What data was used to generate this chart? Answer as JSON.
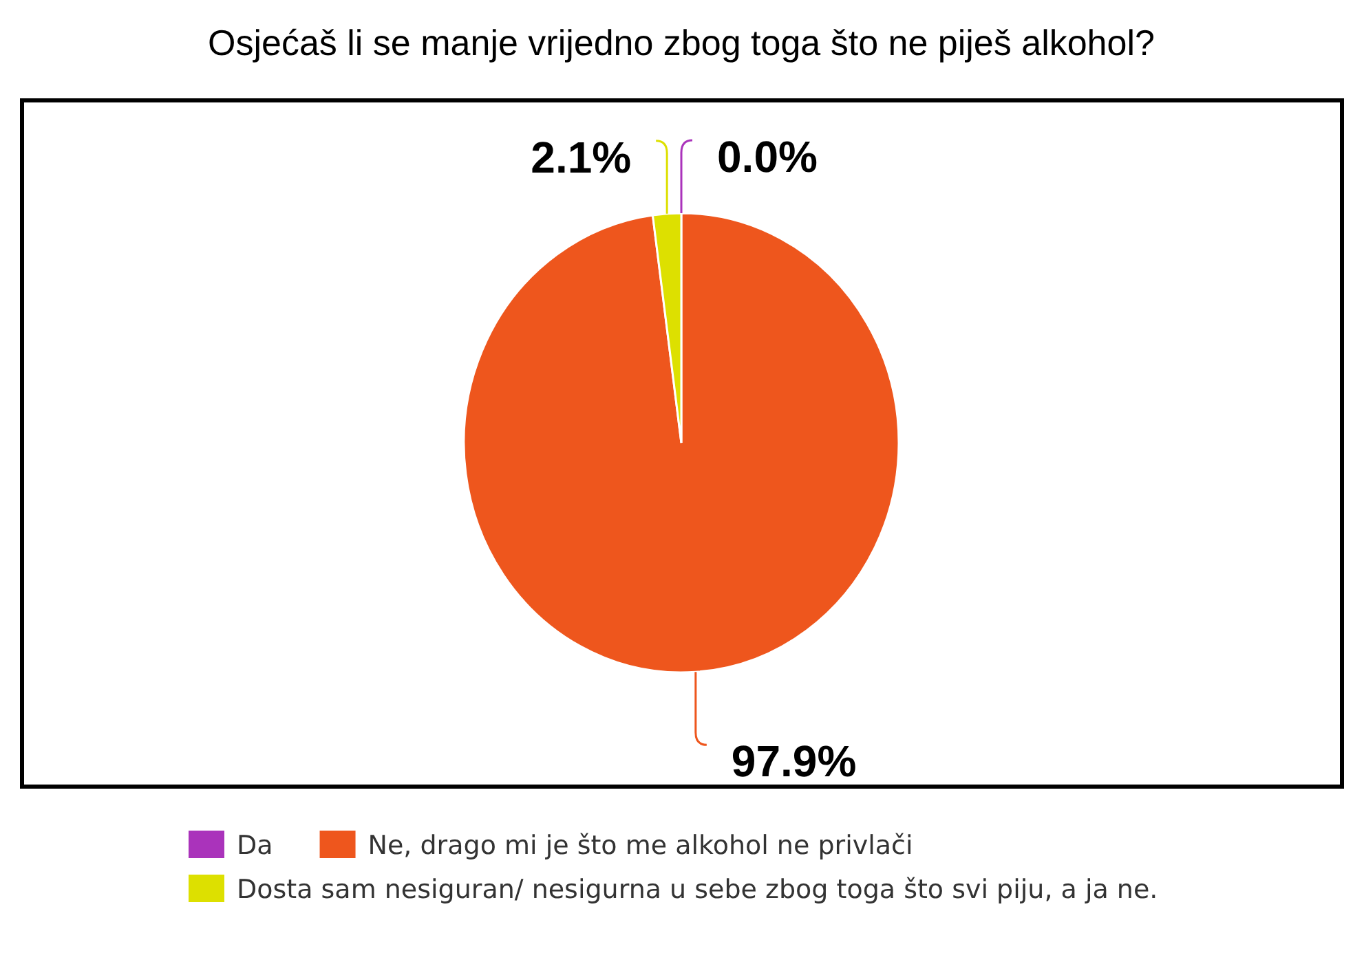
{
  "chart_data": {
    "type": "pie",
    "title": "Osjećaš li se manje vrijedno zbog toga što ne piješ alkohol?",
    "categories": [
      "Da",
      "Ne, drago mi je što me alkohol ne privlači",
      "Dosta sam nesiguran/ nesigurna u sebe zbog toga što svi piju, a ja ne."
    ],
    "values": [
      0.0,
      97.9,
      2.1
    ],
    "colors": [
      "#aa33bb",
      "#ee561d",
      "#dde000"
    ],
    "value_labels": [
      "0.0%",
      "97.9%",
      "2.1%"
    ],
    "legend": "bottom"
  }
}
